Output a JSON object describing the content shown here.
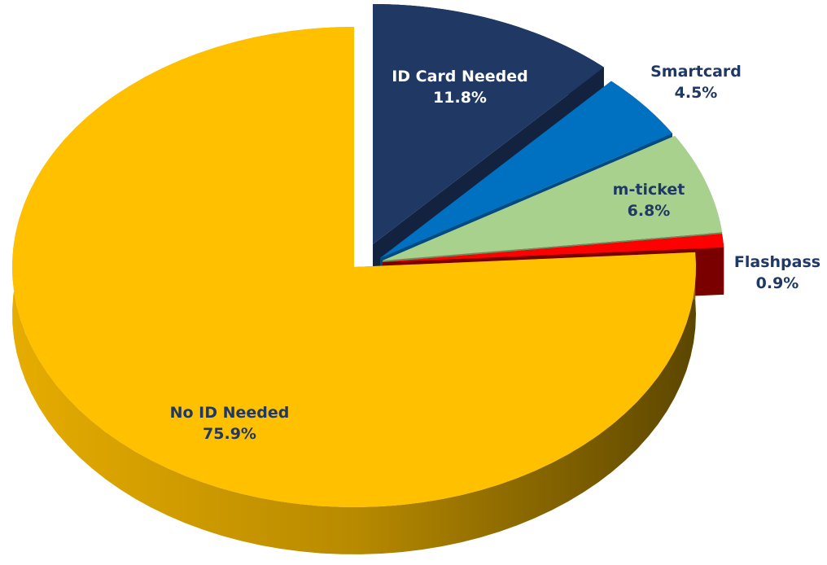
{
  "chart_data": {
    "type": "pie",
    "style": "3d-exploded",
    "slices": [
      {
        "label": "ID Card Needed",
        "value": 11.8,
        "display": "11.8%",
        "color": "#1f3864",
        "side_color": "#13233f",
        "label_color": "#ffffff"
      },
      {
        "label": "Smartcard",
        "value": 4.5,
        "display": "4.5%",
        "color": "#0070c0",
        "side_color": "#004a80",
        "label_color": "#1f3864"
      },
      {
        "label": "m-ticket",
        "value": 6.8,
        "display": "6.8%",
        "color": "#a9d18e",
        "side_color": "#6f8f5a",
        "label_color": "#1f3864"
      },
      {
        "label": "Flashpass",
        "value": 0.9,
        "display": "0.9%",
        "color": "#ff0000",
        "side_color": "#7a0000",
        "label_color": "#1f3864"
      },
      {
        "label": "No ID Needed",
        "value": 75.9,
        "display": "75.9%",
        "color": "#ffc000",
        "side_color": "#8a6a00",
        "label_color": "#1f3864"
      }
    ]
  }
}
